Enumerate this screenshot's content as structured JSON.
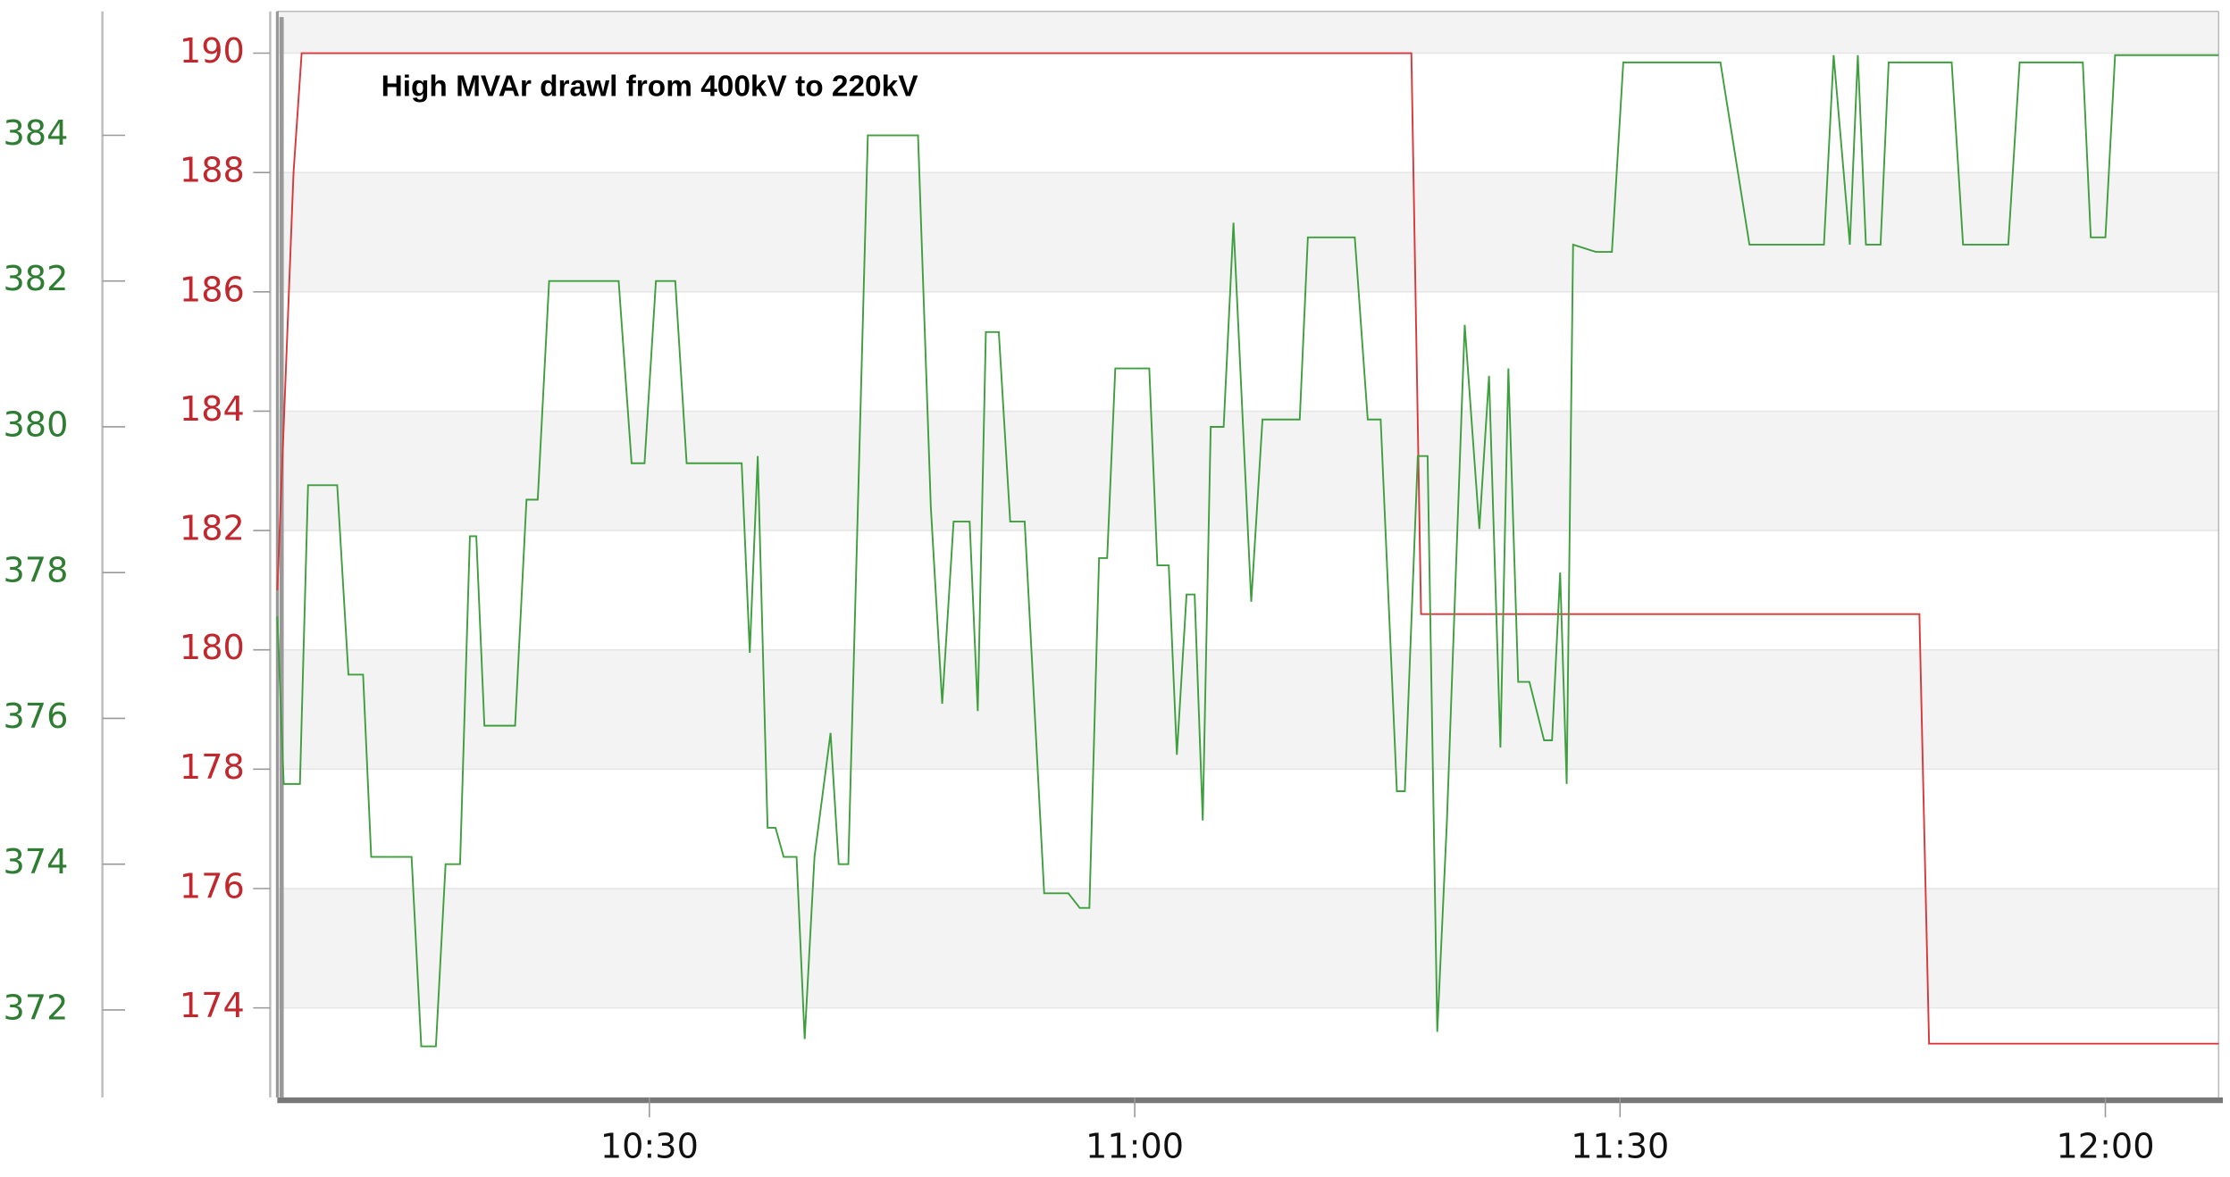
{
  "chart_data": {
    "type": "line",
    "annotation": "High MVAr drawl from 400kV to 220kV",
    "xlim": [
      607,
      727
    ],
    "xticks": [
      {
        "value": 630,
        "label": "10:30"
      },
      {
        "value": 660,
        "label": "11:00"
      },
      {
        "value": 690,
        "label": "11:30"
      },
      {
        "value": 720,
        "label": "12:00"
      }
    ],
    "ylim": [
      172.5,
      190.7
    ],
    "yticks": [
      174,
      176,
      178,
      180,
      182,
      184,
      186,
      188,
      190
    ],
    "y2lim": [
      370.8,
      385.7
    ],
    "y2ticks": [
      372,
      374,
      376,
      378,
      380,
      382,
      384
    ],
    "grid": "bands",
    "series": [
      {
        "color": "#d9383a",
        "axis": "y",
        "x": [
          607,
          607.5,
          608,
          608.5,
          677.1,
          677.7,
          708.5,
          709.1,
          727
        ],
        "values": [
          181,
          184.5,
          188,
          190,
          190,
          180.6,
          180.6,
          173.4,
          173.4
        ]
      },
      {
        "color": "#3f9f3f",
        "axis": "y2",
        "x": [
          607,
          607.4,
          608.4,
          608.9,
          610.7,
          611.4,
          612.3,
          612.8,
          615.3,
          615.9,
          616.8,
          617.4,
          618.3,
          618.9,
          619.3,
          619.8,
          621.7,
          622.4,
          623.1,
          623.8,
          628.1,
          628.9,
          629.7,
          630.4,
          631.6,
          632.3,
          635.7,
          636.2,
          636.7,
          637.3,
          637.8,
          638.3,
          639.1,
          639.6,
          640.2,
          641.2,
          641.7,
          642.3,
          643.5,
          646.6,
          647.4,
          648.1,
          648.8,
          649.8,
          650.3,
          650.8,
          651.6,
          652.3,
          653.2,
          654.4,
          655.9,
          656.6,
          657.2,
          657.8,
          658.3,
          658.8,
          660.9,
          661.4,
          662.1,
          662.6,
          663.2,
          663.7,
          664.2,
          664.7,
          665.5,
          666.1,
          667.2,
          667.9,
          670.2,
          670.7,
          673.6,
          674.4,
          675.2,
          676.2,
          676.7,
          677.5,
          678.1,
          678.7,
          679.3,
          680.4,
          681.3,
          681.9,
          682.6,
          683.1,
          683.7,
          684.4,
          685.3,
          685.8,
          686.3,
          686.7,
          687.1,
          688.5,
          689.5,
          690.2,
          696.2,
          698.0,
          702.6,
          703.2,
          704.2,
          704.7,
          705.2,
          706.1,
          706.6,
          710.5,
          711.2,
          714.0,
          714.7,
          718.6,
          719.1,
          720.0,
          720.6,
          727
        ],
        "values": [
          377.4,
          375.1,
          375.1,
          379.2,
          379.2,
          376.6,
          376.6,
          374.1,
          374.1,
          371.5,
          371.5,
          374.0,
          374.0,
          378.5,
          378.5,
          375.9,
          375.9,
          379.0,
          379.0,
          382.0,
          382.0,
          379.5,
          379.5,
          382.0,
          382.0,
          379.5,
          379.5,
          376.9,
          379.6,
          374.5,
          374.5,
          374.1,
          374.1,
          371.6,
          374.1,
          375.8,
          374.0,
          374.0,
          384.0,
          384.0,
          378.9,
          376.2,
          378.7,
          378.7,
          376.1,
          381.3,
          381.3,
          378.7,
          378.7,
          373.6,
          373.6,
          373.4,
          373.4,
          378.2,
          378.2,
          380.8,
          380.8,
          378.1,
          378.1,
          375.5,
          377.7,
          377.7,
          374.6,
          380.0,
          380.0,
          382.8,
          377.6,
          380.1,
          380.1,
          382.6,
          382.6,
          380.1,
          380.1,
          375.0,
          375.0,
          379.6,
          379.6,
          371.7,
          374.6,
          381.4,
          378.6,
          380.7,
          375.6,
          380.8,
          376.5,
          376.5,
          375.7,
          375.7,
          378.0,
          375.1,
          382.5,
          382.4,
          382.4,
          385.0,
          385.0,
          382.5,
          382.5,
          385.1,
          382.5,
          385.1,
          382.5,
          382.5,
          385.0,
          385.0,
          382.5,
          382.5,
          385.0,
          385.0,
          382.6,
          382.6,
          385.1,
          385.1
        ]
      }
    ]
  }
}
